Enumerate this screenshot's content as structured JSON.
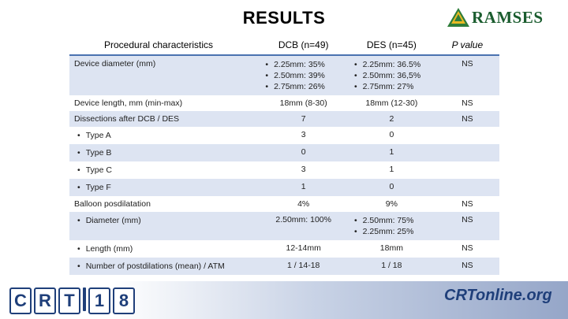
{
  "slide": {
    "title": "RESULTS",
    "logo_right": "RAMSES",
    "footer_left": "CRT18",
    "footer_right": "CRTonline.org"
  },
  "table": {
    "headers": [
      "Procedural characteristics",
      "DCB (n=49)",
      "DES (n=45)",
      "P value"
    ],
    "rows": [
      {
        "label": "Device diameter (mm)",
        "dcb": [
          "2.25mm: 35%",
          "2.50mm: 39%",
          "2.75mm: 26%"
        ],
        "des": [
          "2.25mm: 36.5%",
          "2.50mm: 36,5%",
          "2.75mm: 27%"
        ],
        "p": "NS"
      },
      {
        "label": "Device length, mm (min-max)",
        "dcb": "18mm (8-30)",
        "des": "18mm (12-30)",
        "p": "NS"
      },
      {
        "label": "Dissections after DCB / DES",
        "dcb": "7",
        "des": "2",
        "p": "NS"
      },
      {
        "label": "Type A",
        "dcb": "3",
        "des": "0",
        "p": ""
      },
      {
        "label": "Type B",
        "dcb": "0",
        "des": "1",
        "p": ""
      },
      {
        "label": "Type C",
        "dcb": "3",
        "des": "1",
        "p": ""
      },
      {
        "label": "Type F",
        "dcb": "1",
        "des": "0",
        "p": ""
      },
      {
        "label": "Balloon posdilatation",
        "dcb": "4%",
        "des": "9%",
        "p": "NS"
      },
      {
        "label": "Diameter (mm)",
        "dcb": "2.50mm: 100%",
        "des": [
          "2.50mm: 75%",
          "2.25mm: 25%"
        ],
        "p": "NS"
      },
      {
        "label": "Length (mm)",
        "dcb": "12-14mm",
        "des": "18mm",
        "p": "NS"
      },
      {
        "label": "Number of postdilations (mean) / ATM",
        "dcb": "1 / 14-18",
        "des": "1 / 18",
        "p": "NS"
      }
    ]
  }
}
